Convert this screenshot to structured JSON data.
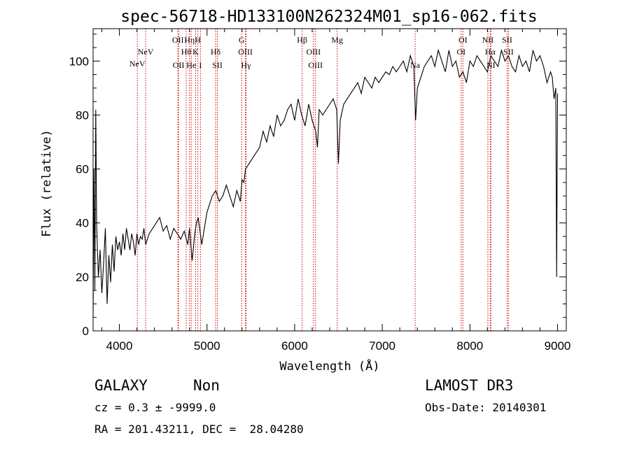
{
  "chart_data": {
    "type": "line",
    "title": "spec-56718-HD133100N262324M01_sp16-062.fits",
    "xlabel": "Wavelength (Å)",
    "ylabel": "Flux (relative)",
    "xlim": [
      3700,
      9100
    ],
    "ylim": [
      0,
      112
    ],
    "xticks": [
      4000,
      5000,
      6000,
      7000,
      8000,
      9000
    ],
    "yticks": [
      0,
      20,
      40,
      60,
      80,
      100
    ],
    "series": [
      {
        "name": "spectrum",
        "x": [
          3700,
          3710,
          3720,
          3730,
          3740,
          3760,
          3780,
          3800,
          3820,
          3840,
          3860,
          3880,
          3900,
          3920,
          3940,
          3960,
          3980,
          4000,
          4020,
          4040,
          4060,
          4080,
          4100,
          4120,
          4140,
          4160,
          4180,
          4200,
          4220,
          4240,
          4260,
          4280,
          4300,
          4340,
          4380,
          4420,
          4460,
          4500,
          4540,
          4580,
          4620,
          4660,
          4700,
          4740,
          4780,
          4800,
          4830,
          4860,
          4880,
          4900,
          4940,
          4980,
          5000,
          5020,
          5060,
          5100,
          5140,
          5180,
          5220,
          5260,
          5300,
          5340,
          5380,
          5400,
          5420,
          5440,
          5480,
          5520,
          5560,
          5600,
          5640,
          5680,
          5720,
          5760,
          5800,
          5840,
          5880,
          5920,
          5960,
          6000,
          6040,
          6080,
          6120,
          6160,
          6200,
          6240,
          6260,
          6280,
          6320,
          6360,
          6400,
          6440,
          6480,
          6500,
          6520,
          6560,
          6600,
          6640,
          6680,
          6720,
          6760,
          6800,
          6840,
          6880,
          6920,
          6960,
          7000,
          7040,
          7080,
          7120,
          7160,
          7200,
          7240,
          7280,
          7320,
          7360,
          7380,
          7400,
          7440,
          7480,
          7520,
          7560,
          7600,
          7640,
          7680,
          7720,
          7760,
          7800,
          7840,
          7880,
          7920,
          7960,
          8000,
          8040,
          8080,
          8120,
          8160,
          8200,
          8240,
          8280,
          8320,
          8360,
          8400,
          8440,
          8480,
          8520,
          8560,
          8600,
          8640,
          8680,
          8720,
          8760,
          8800,
          8840,
          8880,
          8920,
          8940,
          8960,
          8980,
          8990,
          9000
        ],
        "values": [
          5,
          60,
          15,
          82,
          40,
          20,
          30,
          14,
          25,
          38,
          10,
          28,
          18,
          32,
          22,
          35,
          30,
          33,
          28,
          36,
          30,
          38,
          34,
          30,
          36,
          33,
          28,
          36,
          32,
          35,
          34,
          38,
          32,
          36,
          38,
          40,
          42,
          37,
          39,
          34,
          38,
          36,
          34,
          37,
          32,
          38,
          26,
          36,
          40,
          42,
          32,
          40,
          44,
          46,
          50,
          52,
          48,
          50,
          54,
          50,
          46,
          52,
          48,
          56,
          55,
          60,
          62,
          64,
          66,
          68,
          74,
          70,
          76,
          72,
          80,
          76,
          78,
          82,
          84,
          78,
          86,
          80,
          76,
          84,
          78,
          74,
          68,
          82,
          80,
          82,
          84,
          86,
          82,
          62,
          78,
          84,
          86,
          88,
          90,
          92,
          88,
          94,
          92,
          90,
          94,
          92,
          94,
          96,
          95,
          98,
          96,
          98,
          100,
          96,
          102,
          98,
          78,
          90,
          94,
          98,
          100,
          102,
          98,
          104,
          100,
          96,
          104,
          98,
          100,
          94,
          96,
          92,
          100,
          98,
          102,
          100,
          98,
          96,
          102,
          100,
          98,
          104,
          100,
          102,
          98,
          96,
          102,
          98,
          100,
          96,
          104,
          100,
          102,
          98,
          92,
          96,
          94,
          86,
          90,
          20,
          88
        ]
      }
    ],
    "emission_lines": [
      {
        "label": "NeV",
        "x": 4205,
        "row": 2
      },
      {
        "label": "NeV",
        "x": 4300,
        "row": 1
      },
      {
        "label": "OII",
        "x": 4668,
        "row": 0
      },
      {
        "label": "OII",
        "x": 4675,
        "row": 3
      },
      {
        "label": "Hθ",
        "x": 4762,
        "row": 1
      },
      {
        "label": "Hη",
        "x": 4800,
        "row": 0
      },
      {
        "label": "He",
        "x": 4820,
        "row": 3
      },
      {
        "label": "H",
        "x": 4895,
        "row": 0
      },
      {
        "label": "K",
        "x": 4870,
        "row": 1
      },
      {
        "label": "I",
        "x": 4925,
        "row": 3
      },
      {
        "label": "Hδ",
        "x": 5098,
        "row": 1
      },
      {
        "label": "SII",
        "x": 5118,
        "row": 3
      },
      {
        "label": "G",
        "x": 5395,
        "row": 0
      },
      {
        "label": "OIII",
        "x": 5438,
        "row": 1
      },
      {
        "label": "Hγ",
        "x": 5445,
        "row": 3
      },
      {
        "label": "Hβ",
        "x": 6085,
        "row": 0
      },
      {
        "label": "OIII",
        "x": 6215,
        "row": 1
      },
      {
        "label": "OIII",
        "x": 6238,
        "row": 3
      },
      {
        "label": "Mg",
        "x": 6485,
        "row": 0
      },
      {
        "label": "Na",
        "x": 7375,
        "row": 3
      },
      {
        "label": "OI",
        "x": 7920,
        "row": 0
      },
      {
        "label": "OI",
        "x": 7900,
        "row": 1
      },
      {
        "label": "NII",
        "x": 8205,
        "row": 0
      },
      {
        "label": "Hα",
        "x": 8232,
        "row": 1
      },
      {
        "label": "NI",
        "x": 8240,
        "row": 3
      },
      {
        "label": "SII",
        "x": 8425,
        "row": 0
      },
      {
        "label": "SII",
        "x": 8440,
        "row": 1
      }
    ]
  },
  "info": {
    "class": "GALAXY",
    "subclass": "Non",
    "survey": "LAMOST DR3",
    "cz": "cz = 0.3 ± -9999.0",
    "obs_date": "Obs-Date: 20140301",
    "radec": "RA = 201.43211, DEC =  28.04280"
  },
  "colors": {
    "line_marker": "#cc0000",
    "spectrum": "#000000",
    "axes": "#000000"
  }
}
